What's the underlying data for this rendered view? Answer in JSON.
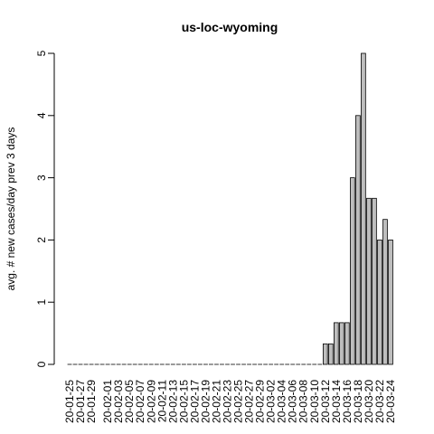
{
  "chart_data": {
    "type": "bar",
    "title": "us-loc-wyoming",
    "xlabel": "",
    "ylabel": "avg. # new cases/day prev  3  days",
    "ylim": [
      0,
      5
    ],
    "yticks": [
      "0",
      "1",
      "2",
      "3",
      "4",
      "5"
    ],
    "grid": false,
    "legend": "none",
    "colors": {
      "bar_fill": "#bebebe",
      "bar_stroke": "#000000",
      "axis": "#000000"
    },
    "categories": [
      "20-01-25",
      "20-01-26",
      "20-01-27",
      "20-01-28",
      "20-01-29",
      "20-01-30",
      "20-01-31",
      "20-02-01",
      "20-02-02",
      "20-02-03",
      "20-02-04",
      "20-02-05",
      "20-02-06",
      "20-02-07",
      "20-02-08",
      "20-02-09",
      "20-02-10",
      "20-02-11",
      "20-02-12",
      "20-02-13",
      "20-02-14",
      "20-02-15",
      "20-02-16",
      "20-02-17",
      "20-02-18",
      "20-02-19",
      "20-02-20",
      "20-02-21",
      "20-02-22",
      "20-02-23",
      "20-02-24",
      "20-02-25",
      "20-02-26",
      "20-02-27",
      "20-02-28",
      "20-02-29",
      "20-03-01",
      "20-03-02",
      "20-03-03",
      "20-03-04",
      "20-03-05",
      "20-03-06",
      "20-03-07",
      "20-03-08",
      "20-03-09",
      "20-03-10",
      "20-03-11",
      "20-03-12",
      "20-03-13",
      "20-03-14",
      "20-03-15",
      "20-03-16",
      "20-03-17",
      "20-03-18",
      "20-03-19",
      "20-03-20",
      "20-03-21",
      "20-03-22",
      "20-03-23",
      "20-03-24"
    ],
    "values": [
      0,
      0,
      0,
      0,
      0,
      0,
      0,
      0,
      0,
      0,
      0,
      0,
      0,
      0,
      0,
      0,
      0,
      0,
      0,
      0,
      0,
      0,
      0,
      0,
      0,
      0,
      0,
      0,
      0,
      0,
      0,
      0,
      0,
      0,
      0,
      0,
      0,
      0,
      0,
      0,
      0,
      0,
      0,
      0,
      0,
      0,
      0,
      0.33,
      0.33,
      0.67,
      0.67,
      0.67,
      3,
      4,
      5,
      2.67,
      2.67,
      2,
      2.33,
      2
    ],
    "shown_tick_labels": [
      "20-01-25",
      "20-01-27",
      "20-01-29",
      "20-02-01",
      "20-02-03",
      "20-02-05",
      "20-02-07",
      "20-02-09",
      "20-02-11",
      "20-02-13",
      "20-02-15",
      "20-02-17",
      "20-02-19",
      "20-02-21",
      "20-02-23",
      "20-02-25",
      "20-02-27",
      "20-02-29",
      "20-03-02",
      "20-03-04",
      "20-03-06",
      "20-03-08",
      "20-03-10",
      "20-03-12",
      "20-03-14",
      "20-03-16",
      "20-03-18",
      "20-03-20",
      "20-03-22",
      "20-03-24"
    ]
  }
}
